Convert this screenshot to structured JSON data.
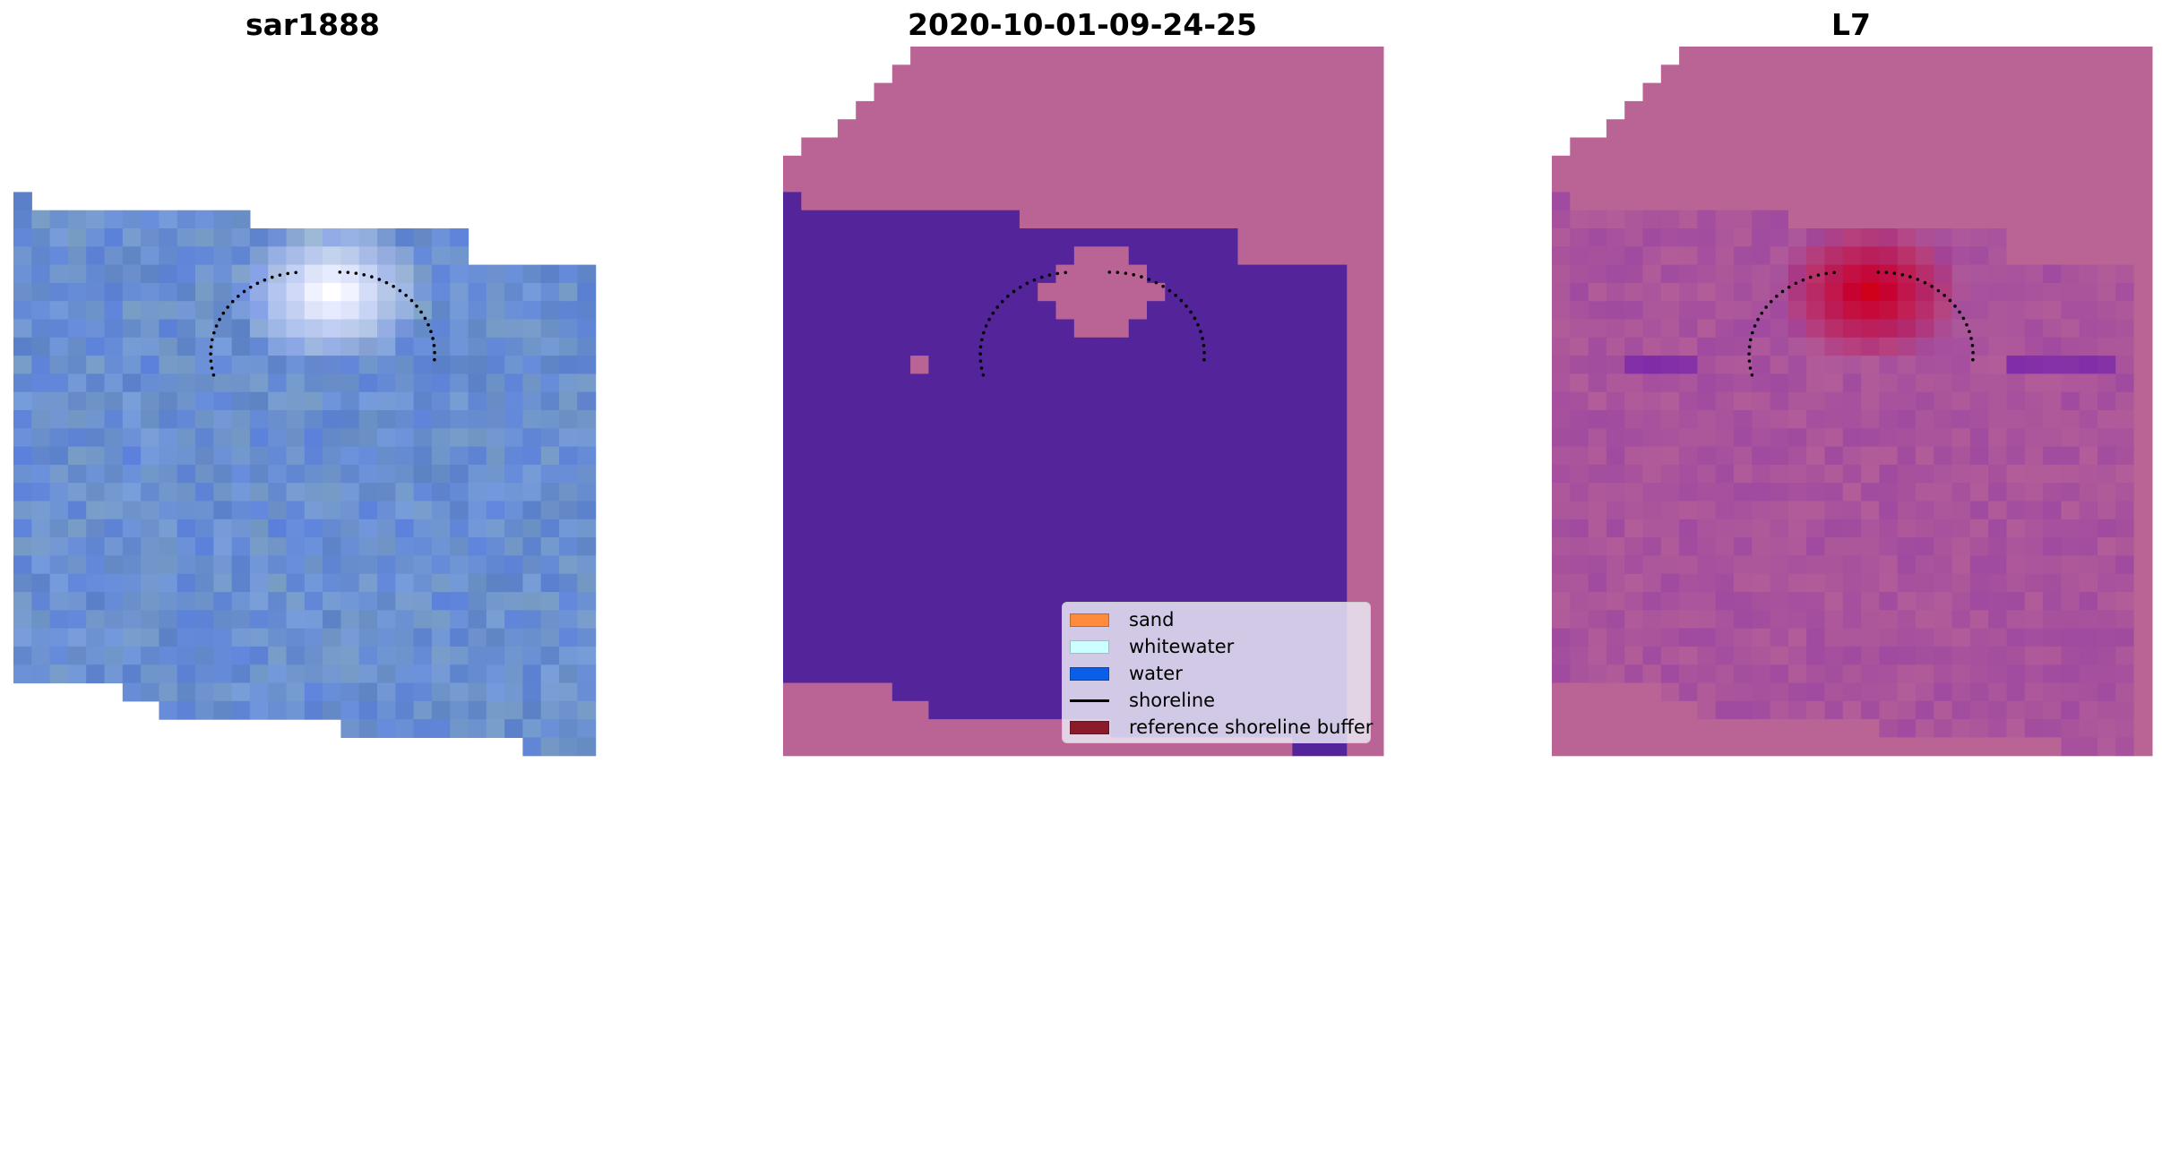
{
  "panels": [
    {
      "title": "sar1888"
    },
    {
      "title": "2020-10-01-09-24-25"
    },
    {
      "title": "L7"
    }
  ],
  "legend": {
    "items": [
      {
        "label": "sand",
        "color": "#ff8c3c",
        "kind": "patch"
      },
      {
        "label": "whitewater",
        "color": "#ccffff",
        "kind": "patch"
      },
      {
        "label": "water",
        "color": "#0a5fe6",
        "kind": "patch"
      },
      {
        "label": "shoreline",
        "color": "#000000",
        "kind": "line"
      },
      {
        "label": "reference shoreline buffer",
        "color": "#8b1a2a",
        "kind": "patch"
      }
    ]
  },
  "colors": {
    "no_data": "#ba6496",
    "water_class": "#54249a",
    "sar_base": "#6a8fd0",
    "whitewater_blob": "#e8ecff",
    "buffer_overlay": "#c8002e",
    "shoreline_dots": "#000000"
  }
}
